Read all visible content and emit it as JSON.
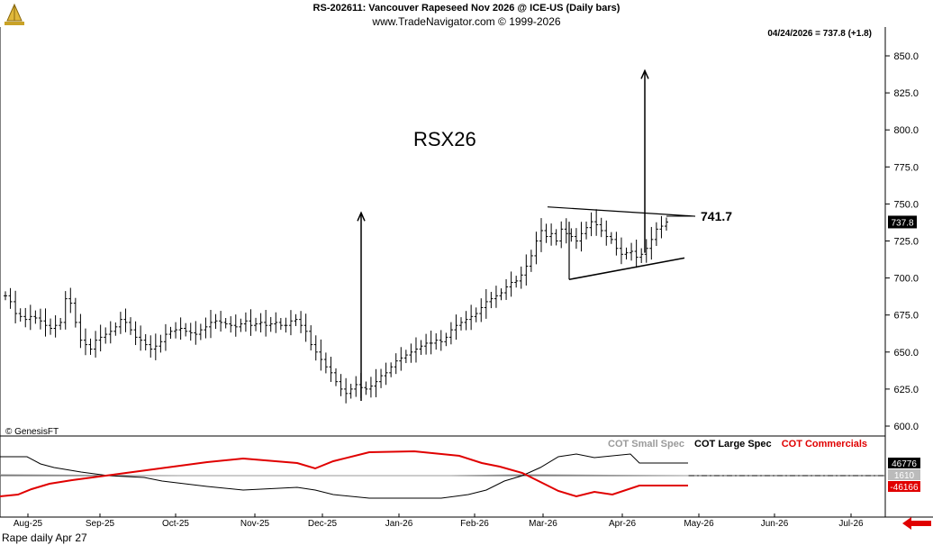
{
  "header": {
    "title": "RS-202611:  Vancouver Rapeseed Nov 2026 @ ICE-US  (Daily bars)",
    "site": "www.TradeNavigator.com © 1999-2026",
    "last_info": "04/24/2026 = 737.8 (+1.8)"
  },
  "copyright": "© GenesisFT",
  "footer": "Rape daily Apr 27",
  "annotations": {
    "symbol": "RSX26",
    "level": "741.7"
  },
  "colors": {
    "small_spec": "#9a9a9a",
    "large_spec": "#000000",
    "commercials": "#e00000",
    "background": "#ffffff",
    "back_arrow": "#e00000"
  },
  "icons": [
    "trade-navigator-logo-icon",
    "back-arrow-icon"
  ],
  "chart_data": [
    {
      "type": "ohlc",
      "y_ticks": [
        "850.0",
        "825.0",
        "800.0",
        "775.0",
        "750.0",
        "725.0",
        "700.0",
        "675.0",
        "650.0",
        "625.0",
        "600.0"
      ],
      "ylim": [
        595,
        862
      ],
      "x_ticks": [
        "Aug-25",
        "Sep-25",
        "Oct-25",
        "Nov-25",
        "Dec-25",
        "Jan-26",
        "Feb-26",
        "Mar-26",
        "Apr-26",
        "May-26",
        "Jun-26",
        "Jul-26"
      ],
      "last_price_label": "737.8",
      "closes": [
        688,
        684,
        676,
        674,
        672,
        674,
        673,
        671,
        668,
        666,
        668,
        670,
        686,
        683,
        670,
        658,
        655,
        652,
        658,
        660,
        662,
        664,
        667,
        672,
        670,
        665,
        660,
        658,
        655,
        652,
        654,
        657,
        662,
        664,
        665,
        666,
        664,
        663,
        662,
        665,
        667,
        670,
        671,
        670,
        669,
        668,
        667,
        669,
        671,
        668,
        669,
        670,
        668,
        669,
        670,
        668,
        668,
        671,
        672,
        668,
        664,
        655,
        650,
        645,
        640,
        636,
        630,
        625,
        622,
        625,
        628,
        626,
        625,
        627,
        630,
        634,
        636,
        640,
        644,
        646,
        648,
        650,
        652,
        654,
        656,
        656,
        658,
        657,
        660,
        665,
        668,
        670,
        672,
        674,
        676,
        680,
        684,
        686,
        688,
        690,
        694,
        697,
        698,
        702,
        708,
        715,
        725,
        732,
        728,
        730,
        725,
        733,
        730,
        728,
        725,
        730,
        734,
        738,
        736,
        732,
        728,
        726,
        720,
        716,
        717,
        718,
        714,
        716,
        720,
        726,
        733,
        735,
        737.8
      ],
      "flag_lines": [
        {
          "from": [
            "Mar-26 start",
            748
          ],
          "to": [
            "May-26 start",
            741.7
          ]
        },
        {
          "from": [
            "Mar-26 start",
            699
          ],
          "to": [
            "May-26 start",
            713.5
          ]
        }
      ],
      "projection_arrows": [
        {
          "at": "Dec-25 late",
          "from": 617,
          "to": 744
        },
        {
          "at": "Apr-26 mid",
          "from": 717,
          "to": 840
        }
      ]
    },
    {
      "type": "line",
      "title": "COT",
      "series": [
        {
          "name": "COT Small Spec",
          "last_label": "1610"
        },
        {
          "name": "COT Large Spec",
          "last_label": "46776"
        },
        {
          "name": "COT Commercials",
          "last_label": "-46166"
        }
      ]
    }
  ]
}
